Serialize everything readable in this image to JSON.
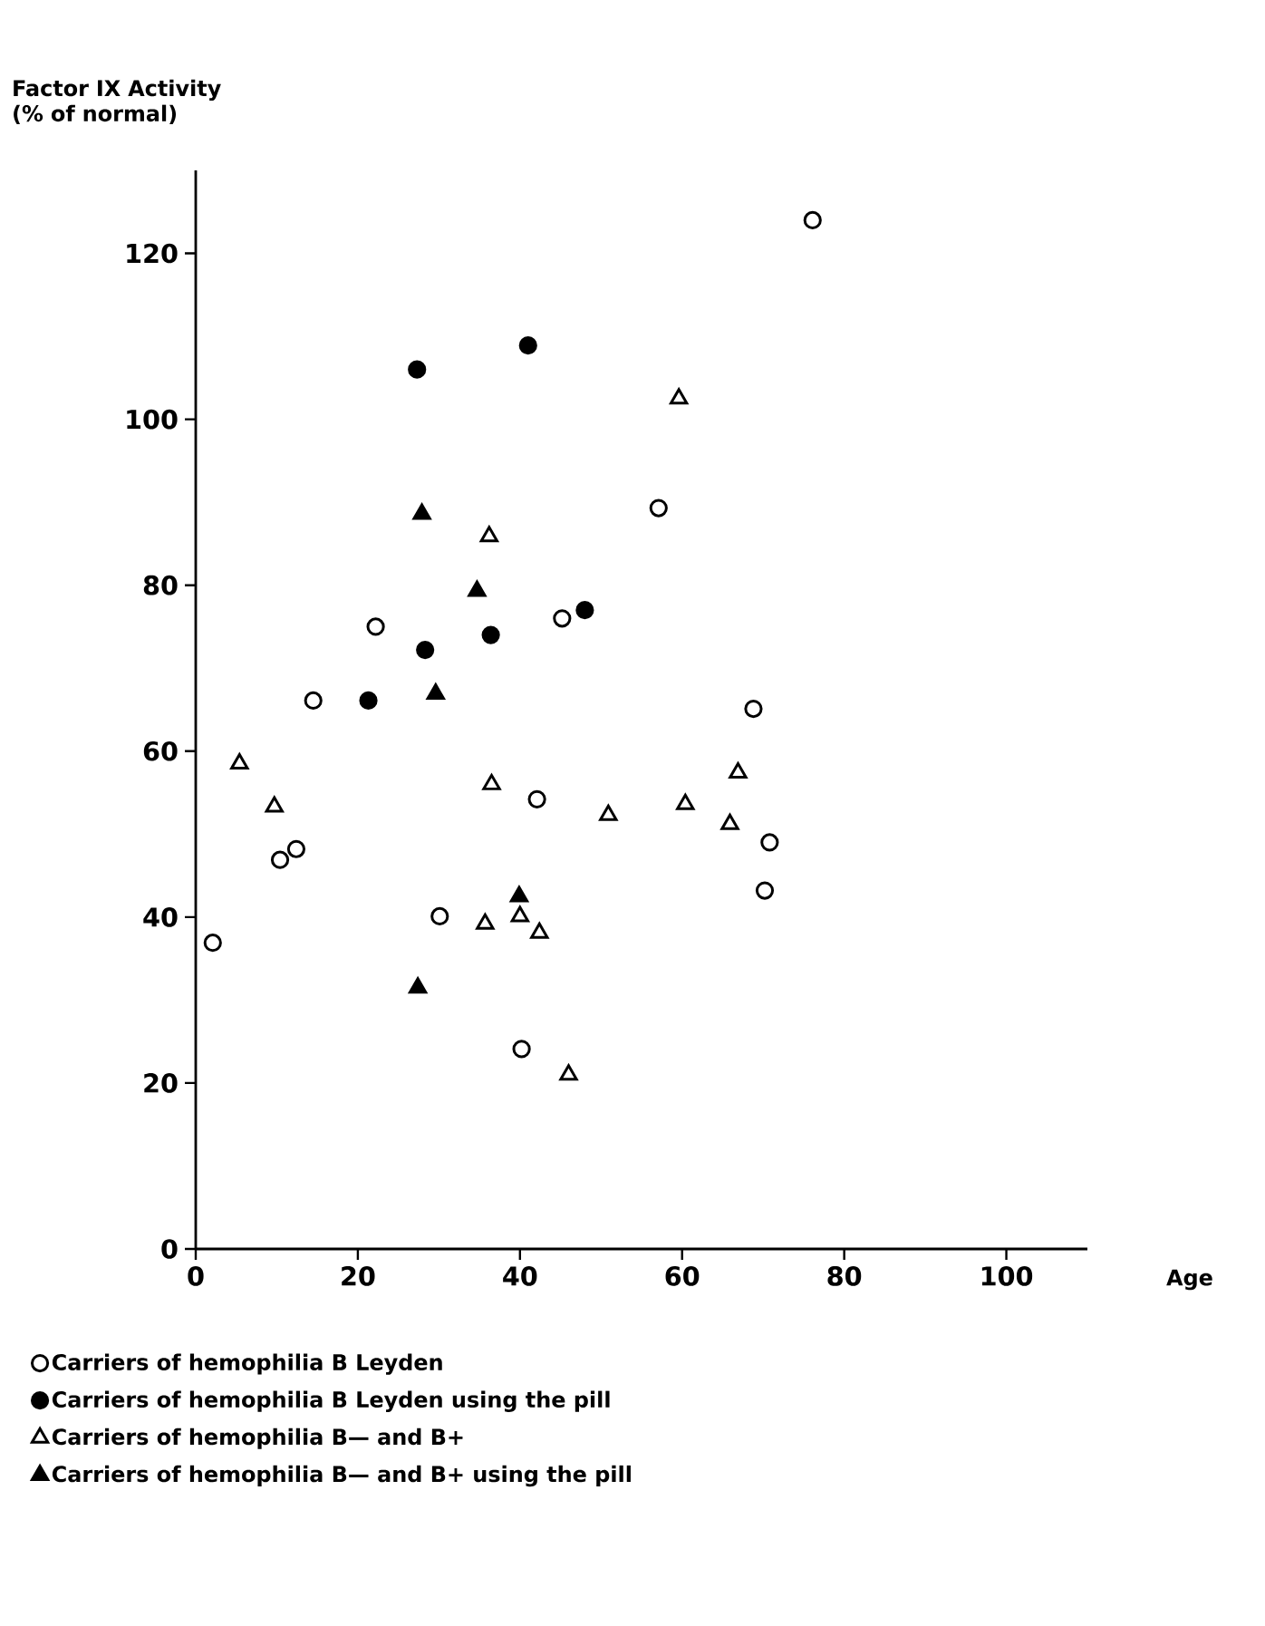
{
  "chart_data": {
    "type": "scatter",
    "ylabel": "Factor IX Activity (% of normal)",
    "xlabel": "Age",
    "xlim": [
      0,
      110
    ],
    "xticks": [
      0,
      20,
      40,
      60,
      80,
      100
    ],
    "ylim": [
      0,
      130
    ],
    "yticks": [
      0,
      20,
      40,
      60,
      80,
      100,
      120
    ],
    "grid": false,
    "legend": "bottom",
    "series": [
      {
        "name": "Carriers of hemophilia B Leyden",
        "color": "#000000",
        "marker": "circle-open",
        "x": [
          76.1,
          57.1,
          22.2,
          45.2,
          14.5,
          68.8,
          42.1,
          70.8,
          70.2,
          12.4,
          10.4,
          30.1,
          2.1,
          40.2
        ],
        "values": [
          124.0,
          89.3,
          75.0,
          76.0,
          66.1,
          65.1,
          54.2,
          49.0,
          43.2,
          48.2,
          46.9,
          40.1,
          36.9,
          24.1
        ]
      },
      {
        "name": "Carriers of hemophilia B Leyden using the pill",
        "color": "#000000",
        "marker": "circle",
        "x": [
          27.3,
          41.0,
          28.3,
          36.4,
          48.0,
          21.3
        ],
        "values": [
          106.0,
          108.9,
          72.2,
          74.0,
          77.0,
          66.1
        ]
      },
      {
        "name": "Carriers of hemophilia B— and B+",
        "color": "#000000",
        "marker": "triangle-open",
        "x": [
          59.6,
          36.2,
          5.4,
          9.7,
          36.5,
          50.9,
          60.4,
          66.9,
          65.9,
          35.7,
          40.0,
          42.4,
          46.0
        ],
        "values": [
          102.5,
          85.9,
          58.5,
          53.3,
          56.0,
          52.3,
          53.6,
          57.4,
          51.2,
          39.2,
          40.1,
          38.1,
          21.0
        ]
      },
      {
        "name": "Carriers of hemophilia B— and B+ using the pill",
        "color": "#000000",
        "marker": "triangle",
        "x": [
          27.9,
          34.7,
          29.6,
          39.9,
          27.4
        ],
        "values": [
          88.6,
          79.3,
          66.9,
          42.5,
          31.5
        ]
      }
    ]
  }
}
